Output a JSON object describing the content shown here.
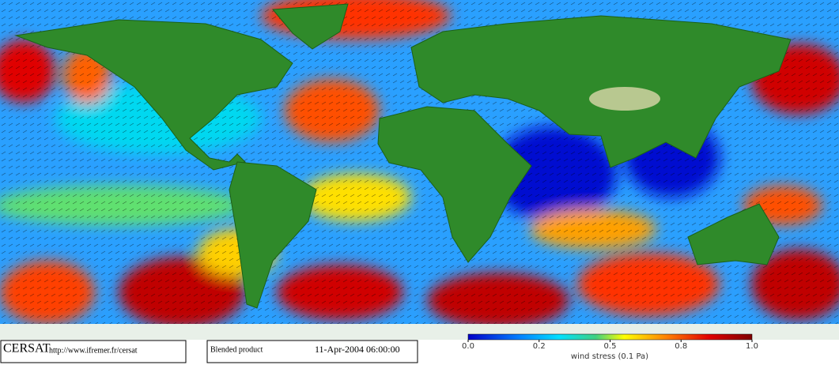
{
  "footer": {
    "logo": "CERSAT",
    "url": "http://www.ifremer.fr/cersat",
    "product": "Blended product",
    "date": "11-Apr-2004 06:00:00"
  },
  "colorbar": {
    "label": "wind stress (0.1 Pa)",
    "ticks": [
      {
        "value": 0,
        "label": "0.0"
      },
      0.2,
      0.5,
      0.8,
      {
        "value": 1,
        "label": "1.0"
      }
    ]
  }
}
